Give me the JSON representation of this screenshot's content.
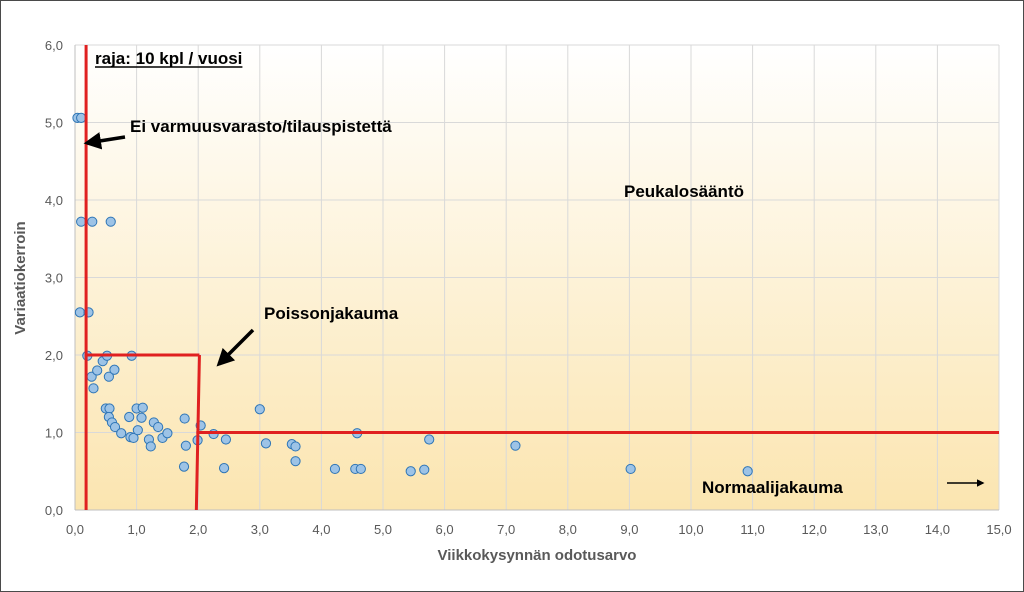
{
  "chart_data": {
    "type": "scatter",
    "title": "",
    "xlabel": "Viikkokysynnän odotusarvo",
    "ylabel": "Variaatiokerroin",
    "xlim": [
      0,
      15
    ],
    "ylim": [
      0,
      6
    ],
    "xticks": [
      0,
      1,
      2,
      3,
      4,
      5,
      6,
      7,
      8,
      9,
      10,
      11,
      12,
      13,
      14,
      15
    ],
    "yticks": [
      0,
      1,
      2,
      3,
      4,
      5,
      6
    ],
    "xtick_labels": [
      "0,0",
      "1,0",
      "2,0",
      "3,0",
      "4,0",
      "5,0",
      "6,0",
      "7,0",
      "8,0",
      "9,0",
      "10,0",
      "11,0",
      "12,0",
      "13,0",
      "14,0",
      "15,0"
    ],
    "ytick_labels": [
      "0,0",
      "1,0",
      "2,0",
      "3,0",
      "4,0",
      "5,0",
      "6,0"
    ],
    "grid": true,
    "marker_color": "#9dc3e6",
    "marker_edge": "#2e75b6",
    "boundary_color": "#e02020",
    "background_top": "#ffffff",
    "background_bottom": "#fbe5b0",
    "x": [
      0.04,
      0.1,
      0.1,
      0.28,
      0.58,
      0.08,
      0.22,
      0.2,
      0.27,
      0.3,
      0.36,
      0.45,
      0.52,
      0.55,
      0.64,
      0.92,
      0.5,
      0.56,
      0.55,
      0.6,
      0.65,
      0.75,
      0.88,
      0.9,
      0.95,
      1.0,
      1.02,
      1.08,
      1.1,
      1.2,
      1.23,
      1.28,
      1.35,
      1.42,
      1.5,
      1.78,
      1.8,
      1.77,
      1.99,
      2.04,
      2.25,
      2.45,
      2.42,
      3.0,
      3.1,
      3.52,
      3.58,
      3.58,
      4.22,
      4.55,
      4.58,
      4.64,
      5.45,
      5.67,
      5.75,
      7.15,
      9.02,
      10.92
    ],
    "y": [
      5.06,
      5.06,
      3.72,
      3.72,
      3.72,
      2.55,
      2.55,
      1.99,
      1.72,
      1.57,
      1.8,
      1.92,
      1.99,
      1.72,
      1.81,
      1.99,
      1.31,
      1.31,
      1.2,
      1.13,
      1.07,
      0.99,
      1.2,
      0.94,
      0.93,
      1.31,
      1.03,
      1.19,
      1.32,
      0.91,
      0.82,
      1.13,
      1.07,
      0.93,
      0.99,
      1.18,
      0.83,
      0.56,
      0.9,
      1.09,
      0.98,
      0.91,
      0.54,
      1.3,
      0.86,
      0.85,
      0.63,
      0.82,
      0.53,
      0.53,
      0.99,
      0.53,
      0.5,
      0.52,
      0.91,
      0.83,
      0.53,
      0.5
    ],
    "boundaries": [
      {
        "name": "raja-vertical",
        "x": [
          0.18,
          0.18
        ],
        "y": [
          0,
          6
        ]
      },
      {
        "name": "poisson-top",
        "x": [
          0.18,
          2.02
        ],
        "y": [
          2,
          2
        ]
      },
      {
        "name": "poisson-right",
        "x": [
          2.02,
          1.97
        ],
        "y": [
          2,
          0
        ]
      },
      {
        "name": "normal-horizontal",
        "x": [
          1.97,
          15
        ],
        "y": [
          1,
          1
        ]
      }
    ],
    "annotations": [
      {
        "name": "annotation-raja",
        "text": "raja: 10 kpl / vuosi",
        "underline": true
      },
      {
        "name": "annotation-ei-varmuusvarasto",
        "text": "Ei varmuusvarasto/tilauspistettä",
        "arrow": "left"
      },
      {
        "name": "annotation-peukalosaanto",
        "text": "Peukalosääntö"
      },
      {
        "name": "annotation-poissonjakauma",
        "text": "Poissonjakauma",
        "arrow": "down-left"
      },
      {
        "name": "annotation-normaalijakauma",
        "text": "Normaalijakauma",
        "arrow": "right"
      }
    ]
  }
}
